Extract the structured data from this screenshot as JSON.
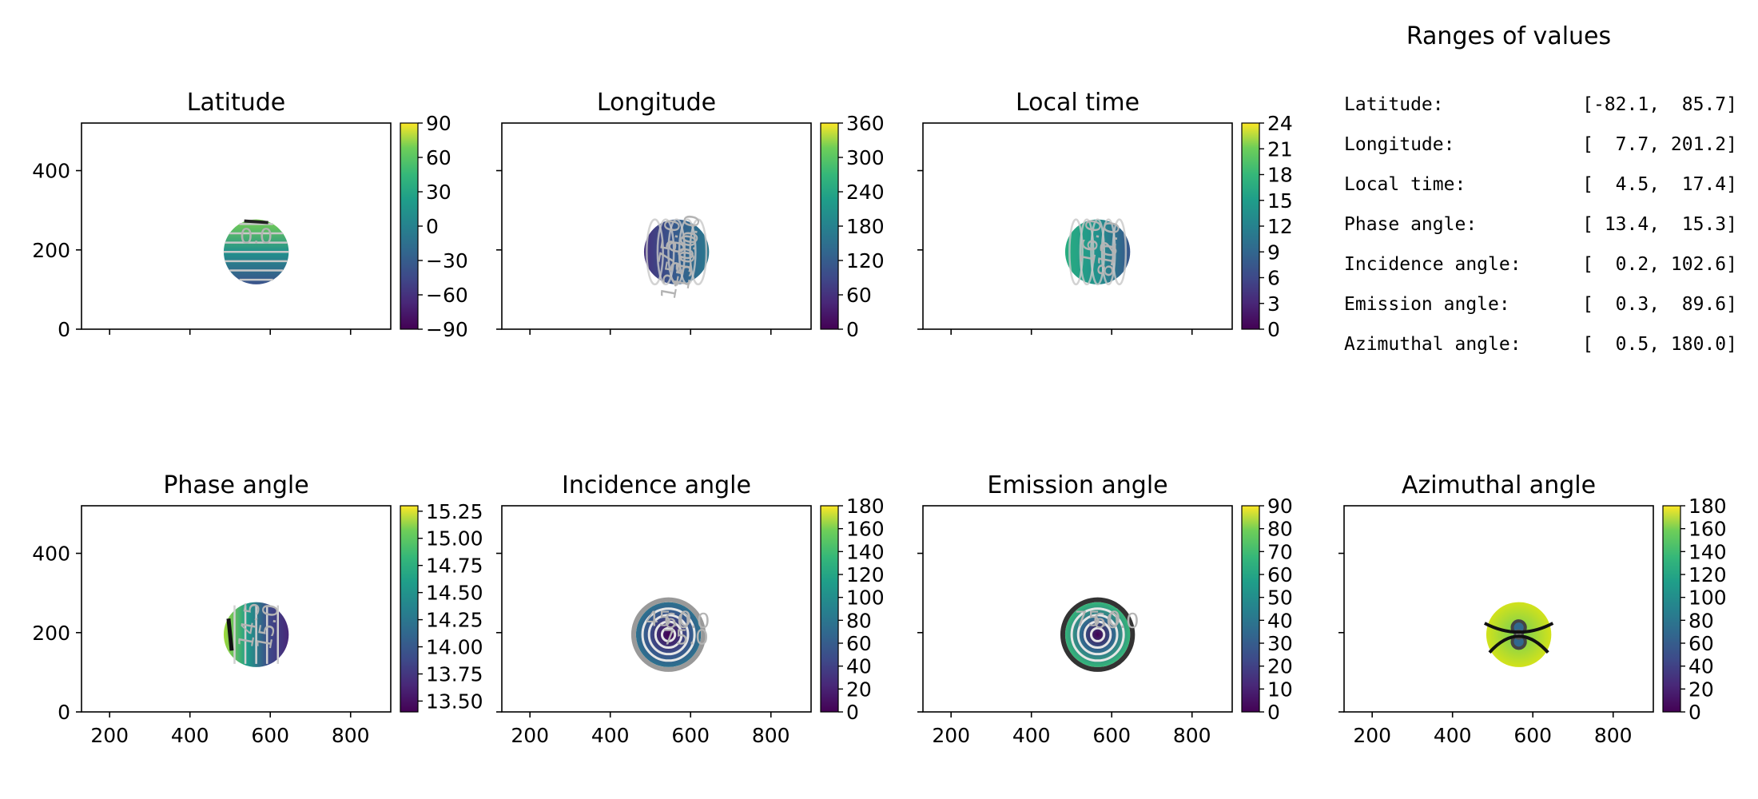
{
  "ranges": {
    "title": "Ranges of values",
    "rows": [
      {
        "label": "Latitude:",
        "value": "[-82.1,  85.7]"
      },
      {
        "label": "Longitude:",
        "value": "[  7.7, 201.2]"
      },
      {
        "label": "Local time:",
        "value": "[  4.5,  17.4]"
      },
      {
        "label": "Phase angle:",
        "value": "[ 13.4,  15.3]"
      },
      {
        "label": "Incidence angle:",
        "value": "[  0.2, 102.6]"
      },
      {
        "label": "Emission angle:",
        "value": "[  0.3,  89.6]"
      },
      {
        "label": "Azimuthal angle:",
        "value": "[  0.5, 180.0]"
      }
    ]
  },
  "chart_data": [
    {
      "type": "heatmap",
      "title": "Latitude",
      "x_ticks": [
        "200",
        "400",
        "600",
        "800"
      ],
      "y_ticks": [
        "0",
        "200",
        "400"
      ],
      "xlim": [
        130,
        900
      ],
      "ylim": [
        0,
        520
      ],
      "colorbar": {
        "ticks": [
          "90",
          "60",
          "30",
          "0",
          "−30",
          "−60",
          "−90"
        ],
        "range": [
          -90,
          90
        ]
      },
      "disk": {
        "center": [
          565,
          195
        ],
        "radius": 82
      },
      "contour_labels": [
        "0.0"
      ]
    },
    {
      "type": "heatmap",
      "title": "Longitude",
      "x_ticks": [
        "200",
        "400",
        "600",
        "800"
      ],
      "y_ticks": [
        "0",
        "200",
        "400"
      ],
      "xlim": [
        130,
        900
      ],
      "ylim": [
        0,
        520
      ],
      "colorbar": {
        "ticks": [
          "360",
          "300",
          "240",
          "180",
          "120",
          "60",
          "0"
        ],
        "range": [
          0,
          360
        ]
      },
      "disk": {
        "center": [
          565,
          195
        ],
        "radius": 82
      },
      "contour_labels": [
        "75.0",
        "100.0",
        "150.0",
        "125.0"
      ]
    },
    {
      "type": "heatmap",
      "title": "Local time",
      "x_ticks": [
        "200",
        "400",
        "600",
        "800"
      ],
      "y_ticks": [
        "0",
        "200",
        "400"
      ],
      "xlim": [
        130,
        900
      ],
      "ylim": [
        0,
        520
      ],
      "colorbar": {
        "ticks": [
          "24",
          "21",
          "18",
          "15",
          "12",
          "9",
          "6",
          "3",
          "0"
        ],
        "range": [
          0,
          24
        ]
      },
      "disk": {
        "center": [
          565,
          195
        ],
        "radius": 82
      },
      "contour_labels": [
        "16.0",
        "12.0",
        "8.0"
      ]
    },
    {
      "type": "heatmap",
      "title": "Phase angle",
      "x_ticks": [
        "200",
        "400",
        "600",
        "800"
      ],
      "y_ticks": [
        "0",
        "200",
        "400"
      ],
      "xlim": [
        130,
        900
      ],
      "ylim": [
        0,
        520
      ],
      "colorbar": {
        "ticks": [
          "15.25",
          "15.00",
          "14.75",
          "14.50",
          "14.25",
          "14.00",
          "13.75",
          "13.50"
        ],
        "range": [
          13.4,
          15.3
        ]
      },
      "disk": {
        "center": [
          565,
          195
        ],
        "radius": 82
      },
      "contour_labels": [
        "14.5",
        "15.0"
      ]
    },
    {
      "type": "heatmap",
      "title": "Incidence angle",
      "x_ticks": [
        "200",
        "400",
        "600",
        "800"
      ],
      "y_ticks": [
        "0",
        "200",
        "400"
      ],
      "xlim": [
        130,
        900
      ],
      "ylim": [
        0,
        520
      ],
      "colorbar": {
        "ticks": [
          "180",
          "160",
          "140",
          "120",
          "100",
          "80",
          "60",
          "40",
          "20",
          "0"
        ],
        "range": [
          0,
          180
        ]
      },
      "disk": {
        "center": [
          545,
          195
        ],
        "radius": 82
      },
      "contour_labels": [
        "45.0",
        "60.0",
        "75.0"
      ]
    },
    {
      "type": "heatmap",
      "title": "Emission angle",
      "x_ticks": [
        "200",
        "400",
        "600",
        "800"
      ],
      "y_ticks": [
        "0",
        "200",
        "400"
      ],
      "xlim": [
        130,
        900
      ],
      "ylim": [
        0,
        520
      ],
      "colorbar": {
        "ticks": [
          "90",
          "80",
          "70",
          "60",
          "50",
          "40",
          "30",
          "20",
          "10",
          "0"
        ],
        "range": [
          0,
          90
        ]
      },
      "disk": {
        "center": [
          565,
          195
        ],
        "radius": 82
      },
      "contour_labels": [
        "75.0",
        "60.0"
      ]
    },
    {
      "type": "heatmap",
      "title": "Azimuthal angle",
      "x_ticks": [
        "200",
        "400",
        "600",
        "800"
      ],
      "y_ticks": [
        "0",
        "200",
        "400"
      ],
      "xlim": [
        130,
        900
      ],
      "ylim": [
        0,
        520
      ],
      "colorbar": {
        "ticks": [
          "180",
          "160",
          "140",
          "120",
          "100",
          "80",
          "60",
          "40",
          "20",
          "0"
        ],
        "range": [
          0,
          180
        ]
      },
      "disk": {
        "center": [
          565,
          195
        ],
        "radius": 82
      },
      "contour_labels": []
    }
  ]
}
